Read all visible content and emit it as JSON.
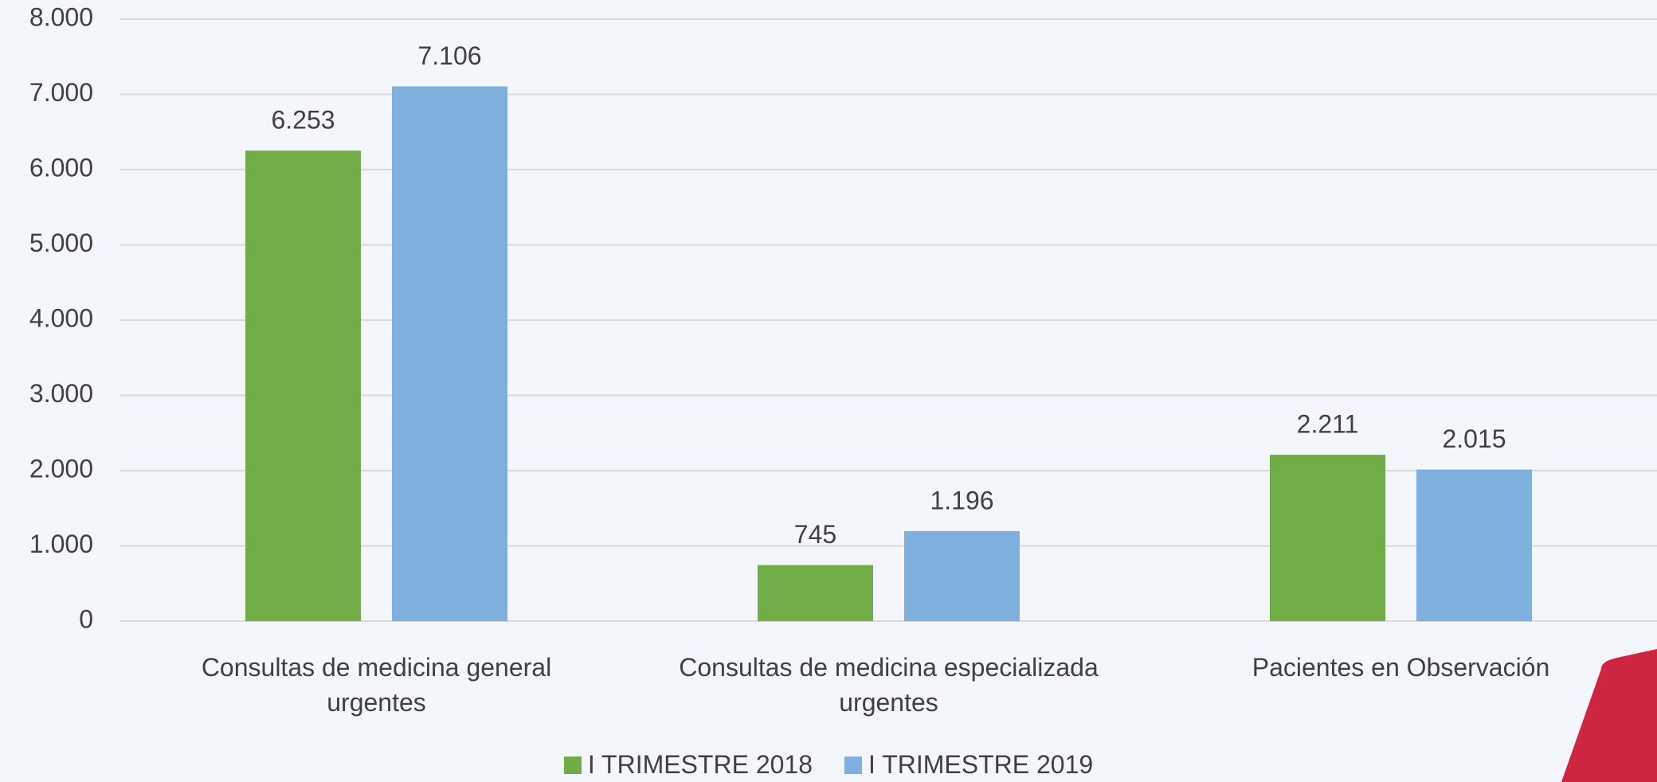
{
  "chart_data": {
    "type": "bar",
    "categories": [
      "Consultas de medicina general urgentes",
      "Consultas de medicina especializada urgentes",
      "Pacientes en Observación"
    ],
    "series": [
      {
        "name": "I TRIMESTRE 2018",
        "color": "#70ad47",
        "values": [
          6253,
          745,
          2211
        ],
        "value_labels": [
          "6.253",
          "745",
          "2.211"
        ]
      },
      {
        "name": "I TRIMESTRE 2019",
        "color": "#7eafdd",
        "values": [
          7106,
          1196,
          2015
        ],
        "value_labels": [
          "7.106",
          "1.196",
          "2.015"
        ]
      }
    ],
    "ylim": [
      0,
      8000
    ],
    "yticks": [
      0,
      {
        "value": 1000,
        "label": "1.000"
      },
      {
        "value": 2000,
        "label": "2.000"
      },
      {
        "value": 3000,
        "label": "3.000"
      },
      {
        "value": 4000,
        "label": "4.000"
      },
      {
        "value": 5000,
        "label": "5.000"
      },
      {
        "value": 6000,
        "label": "6.000"
      },
      {
        "value": 7000,
        "label": "7.000"
      },
      {
        "value": 8000,
        "label": "8.000"
      }
    ],
    "grid": true,
    "legend": "bottom"
  }
}
